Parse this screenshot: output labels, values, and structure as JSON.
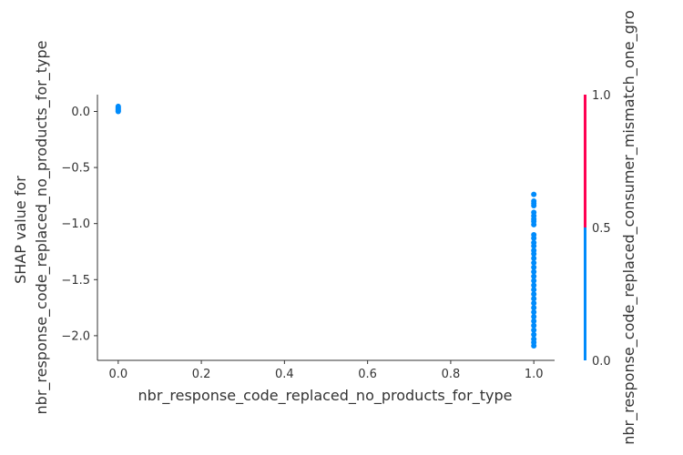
{
  "chart_data": {
    "type": "scatter",
    "xlabel": "nbr_response_code_replaced_no_products_for_type",
    "ylabel_lines": [
      "SHAP value for",
      "nbr_response_code_replaced_no_products_for_type"
    ],
    "xlim": [
      -0.05,
      1.05
    ],
    "ylim": [
      -2.22,
      0.15
    ],
    "x_ticks": [
      0.0,
      0.2,
      0.4,
      0.6,
      0.8,
      1.0
    ],
    "x_tick_labels": [
      "0.0",
      "0.2",
      "0.4",
      "0.6",
      "0.8",
      "1.0"
    ],
    "y_ticks": [
      0.0,
      -0.5,
      -1.0,
      -1.5,
      -2.0
    ],
    "y_tick_labels": [
      "0.0",
      "−0.5",
      "−1.0",
      "−1.5",
      "−2.0"
    ],
    "grid": false,
    "series": [
      {
        "color_value": 0,
        "color": "#008bfb",
        "points": [
          {
            "x": 0.0,
            "y": 0.045
          },
          {
            "x": 0.0,
            "y": 0.035
          },
          {
            "x": 0.0,
            "y": 0.025
          },
          {
            "x": 0.0,
            "y": 0.015
          },
          {
            "x": 0.0,
            "y": 0.005
          },
          {
            "x": 0.0,
            "y": 0.0
          },
          {
            "x": 1.0,
            "y": -0.74
          },
          {
            "x": 1.0,
            "y": -0.8
          },
          {
            "x": 1.0,
            "y": -0.82
          },
          {
            "x": 1.0,
            "y": -0.84
          },
          {
            "x": 1.0,
            "y": -0.9
          },
          {
            "x": 1.0,
            "y": -0.93
          },
          {
            "x": 1.0,
            "y": -0.96
          },
          {
            "x": 1.0,
            "y": -0.98
          },
          {
            "x": 1.0,
            "y": -1.01
          },
          {
            "x": 1.0,
            "y": -1.1
          },
          {
            "x": 1.0,
            "y": -1.13
          },
          {
            "x": 1.0,
            "y": -1.17
          },
          {
            "x": 1.0,
            "y": -1.2
          },
          {
            "x": 1.0,
            "y": -1.24
          },
          {
            "x": 1.0,
            "y": -1.27
          },
          {
            "x": 1.0,
            "y": -1.31
          },
          {
            "x": 1.0,
            "y": -1.35
          },
          {
            "x": 1.0,
            "y": -1.39
          },
          {
            "x": 1.0,
            "y": -1.43
          },
          {
            "x": 1.0,
            "y": -1.47
          },
          {
            "x": 1.0,
            "y": -1.51
          },
          {
            "x": 1.0,
            "y": -1.55
          },
          {
            "x": 1.0,
            "y": -1.59
          },
          {
            "x": 1.0,
            "y": -1.63
          },
          {
            "x": 1.0,
            "y": -1.67
          },
          {
            "x": 1.0,
            "y": -1.71
          },
          {
            "x": 1.0,
            "y": -1.75
          },
          {
            "x": 1.0,
            "y": -1.79
          },
          {
            "x": 1.0,
            "y": -1.83
          },
          {
            "x": 1.0,
            "y": -1.87
          },
          {
            "x": 1.0,
            "y": -1.91
          },
          {
            "x": 1.0,
            "y": -1.95
          },
          {
            "x": 1.0,
            "y": -1.99
          },
          {
            "x": 1.0,
            "y": -2.03
          },
          {
            "x": 1.0,
            "y": -2.06
          },
          {
            "x": 1.0,
            "y": -2.09
          }
        ]
      }
    ],
    "colorbar": {
      "title": "nbr_response_code_replaced_consumer_mismatch_one_gro",
      "range": [
        0.0,
        1.0
      ],
      "ticks": [
        "0.0",
        "0.5",
        "1.0"
      ],
      "low_color": "#008bfb",
      "high_color": "#ff0052"
    }
  }
}
